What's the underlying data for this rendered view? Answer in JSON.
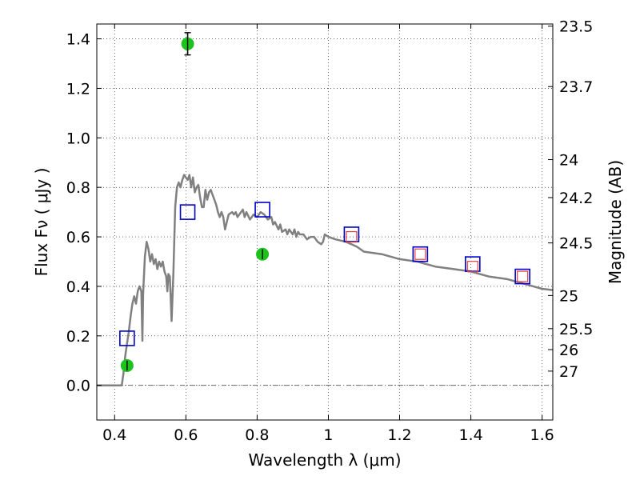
{
  "chart_data": {
    "type": "scatter",
    "xlabel": "Wavelength  λ (μm)",
    "ylabel": "Flux  Fν  ( μJy )",
    "ylabel_right": "Magnitude (AB)",
    "xlim": [
      0.35,
      1.63
    ],
    "ylim": [
      -0.14,
      1.46
    ],
    "grid": true,
    "x_ticks": [
      {
        "value": 0.4,
        "label": "0.4"
      },
      {
        "value": 0.6,
        "label": "0.6"
      },
      {
        "value": 0.8,
        "label": "0.8"
      },
      {
        "value": 1.0,
        "label": "1"
      },
      {
        "value": 1.2,
        "label": "1.2"
      },
      {
        "value": 1.4,
        "label": "1.4"
      },
      {
        "value": 1.6,
        "label": "1.6"
      }
    ],
    "y_ticks": [
      {
        "value": 0.0,
        "label": "0.0"
      },
      {
        "value": 0.2,
        "label": "0.2"
      },
      {
        "value": 0.4,
        "label": "0.4"
      },
      {
        "value": 0.6,
        "label": "0.6"
      },
      {
        "value": 0.8,
        "label": "0.8"
      },
      {
        "value": 1.0,
        "label": "1.0"
      },
      {
        "value": 1.2,
        "label": "1.2"
      },
      {
        "value": 1.4,
        "label": "1.4"
      }
    ],
    "right_ticks": [
      {
        "flux": 1.4513,
        "label": "23.5"
      },
      {
        "flux": 1.2071,
        "label": "23.7"
      },
      {
        "flux": 0.912,
        "label": "24"
      },
      {
        "flux": 0.7586,
        "label": "24.2"
      },
      {
        "flux": 0.5754,
        "label": "24.5"
      },
      {
        "flux": 0.3631,
        "label": "25"
      },
      {
        "flux": 0.2291,
        "label": "25.5"
      },
      {
        "flux": 0.1445,
        "label": "26"
      },
      {
        "flux": 0.0575,
        "label": "27"
      }
    ],
    "series": [
      {
        "kind": "line",
        "color": "#808080",
        "points": [
          [
            0.35,
            0.0
          ],
          [
            0.42,
            0.0
          ],
          [
            0.425,
            0.05
          ],
          [
            0.43,
            0.12
          ],
          [
            0.44,
            0.22
          ],
          [
            0.445,
            0.28
          ],
          [
            0.45,
            0.33
          ],
          [
            0.455,
            0.36
          ],
          [
            0.46,
            0.33
          ],
          [
            0.465,
            0.38
          ],
          [
            0.47,
            0.4
          ],
          [
            0.475,
            0.38
          ],
          [
            0.478,
            0.18
          ],
          [
            0.48,
            0.37
          ],
          [
            0.485,
            0.52
          ],
          [
            0.49,
            0.58
          ],
          [
            0.495,
            0.55
          ],
          [
            0.5,
            0.5
          ],
          [
            0.505,
            0.53
          ],
          [
            0.51,
            0.49
          ],
          [
            0.515,
            0.51
          ],
          [
            0.52,
            0.47
          ],
          [
            0.525,
            0.5
          ],
          [
            0.53,
            0.48
          ],
          [
            0.535,
            0.5
          ],
          [
            0.54,
            0.46
          ],
          [
            0.545,
            0.44
          ],
          [
            0.548,
            0.38
          ],
          [
            0.551,
            0.45
          ],
          [
            0.555,
            0.44
          ],
          [
            0.56,
            0.26
          ],
          [
            0.565,
            0.45
          ],
          [
            0.57,
            0.72
          ],
          [
            0.575,
            0.8
          ],
          [
            0.58,
            0.82
          ],
          [
            0.585,
            0.8
          ],
          [
            0.59,
            0.83
          ],
          [
            0.595,
            0.85
          ],
          [
            0.6,
            0.84
          ],
          [
            0.605,
            0.83
          ],
          [
            0.61,
            0.85
          ],
          [
            0.615,
            0.8
          ],
          [
            0.62,
            0.84
          ],
          [
            0.625,
            0.78
          ],
          [
            0.63,
            0.8
          ],
          [
            0.635,
            0.81
          ],
          [
            0.64,
            0.76
          ],
          [
            0.645,
            0.72
          ],
          [
            0.65,
            0.72
          ],
          [
            0.655,
            0.79
          ],
          [
            0.66,
            0.75
          ],
          [
            0.665,
            0.78
          ],
          [
            0.67,
            0.79
          ],
          [
            0.675,
            0.77
          ],
          [
            0.68,
            0.75
          ],
          [
            0.685,
            0.73
          ],
          [
            0.69,
            0.7
          ],
          [
            0.695,
            0.68
          ],
          [
            0.7,
            0.7
          ],
          [
            0.705,
            0.68
          ],
          [
            0.71,
            0.63
          ],
          [
            0.715,
            0.66
          ],
          [
            0.72,
            0.69
          ],
          [
            0.73,
            0.7
          ],
          [
            0.735,
            0.69
          ],
          [
            0.74,
            0.7
          ],
          [
            0.745,
            0.68
          ],
          [
            0.75,
            0.69
          ],
          [
            0.76,
            0.71
          ],
          [
            0.765,
            0.68
          ],
          [
            0.77,
            0.7
          ],
          [
            0.78,
            0.67
          ],
          [
            0.79,
            0.69
          ],
          [
            0.8,
            0.68
          ],
          [
            0.81,
            0.7
          ],
          [
            0.82,
            0.69
          ],
          [
            0.83,
            0.67
          ],
          [
            0.84,
            0.68
          ],
          [
            0.845,
            0.65
          ],
          [
            0.85,
            0.66
          ],
          [
            0.86,
            0.63
          ],
          [
            0.865,
            0.65
          ],
          [
            0.87,
            0.62
          ],
          [
            0.88,
            0.63
          ],
          [
            0.885,
            0.61
          ],
          [
            0.89,
            0.63
          ],
          [
            0.9,
            0.61
          ],
          [
            0.905,
            0.63
          ],
          [
            0.91,
            0.6
          ],
          [
            0.915,
            0.62
          ],
          [
            0.92,
            0.61
          ],
          [
            0.93,
            0.61
          ],
          [
            0.94,
            0.59
          ],
          [
            0.95,
            0.6
          ],
          [
            0.96,
            0.6
          ],
          [
            0.97,
            0.58
          ],
          [
            0.98,
            0.57
          ],
          [
            0.985,
            0.58
          ],
          [
            0.99,
            0.61
          ],
          [
            1.0,
            0.6
          ],
          [
            1.02,
            0.59
          ],
          [
            1.05,
            0.58
          ],
          [
            1.08,
            0.56
          ],
          [
            1.1,
            0.54
          ],
          [
            1.15,
            0.53
          ],
          [
            1.2,
            0.51
          ],
          [
            1.25,
            0.5
          ],
          [
            1.3,
            0.48
          ],
          [
            1.35,
            0.47
          ],
          [
            1.4,
            0.46
          ],
          [
            1.45,
            0.44
          ],
          [
            1.5,
            0.43
          ],
          [
            1.55,
            0.41
          ],
          [
            1.6,
            0.39
          ],
          [
            1.63,
            0.385
          ]
        ]
      },
      {
        "kind": "open-square",
        "color": "#0000cc",
        "points": [
          [
            0.435,
            0.19
          ],
          [
            0.605,
            0.7
          ],
          [
            0.815,
            0.71
          ],
          [
            1.065,
            0.61
          ],
          [
            1.258,
            0.53
          ],
          [
            1.405,
            0.49
          ],
          [
            1.545,
            0.44
          ]
        ]
      },
      {
        "kind": "open-square-small",
        "color": "#e34040",
        "points": [
          [
            1.065,
            0.6
          ],
          [
            1.258,
            0.53
          ],
          [
            1.405,
            0.48
          ],
          [
            1.545,
            0.44
          ]
        ]
      },
      {
        "kind": "filled-circle-errorbar",
        "color": "#1dc21d",
        "points": [
          {
            "x": 0.435,
            "y": 0.08,
            "err": 0.02
          },
          {
            "x": 0.605,
            "y": 1.38,
            "err": 0.045
          },
          {
            "x": 0.815,
            "y": 0.53,
            "err": 0.02
          }
        ]
      }
    ]
  }
}
